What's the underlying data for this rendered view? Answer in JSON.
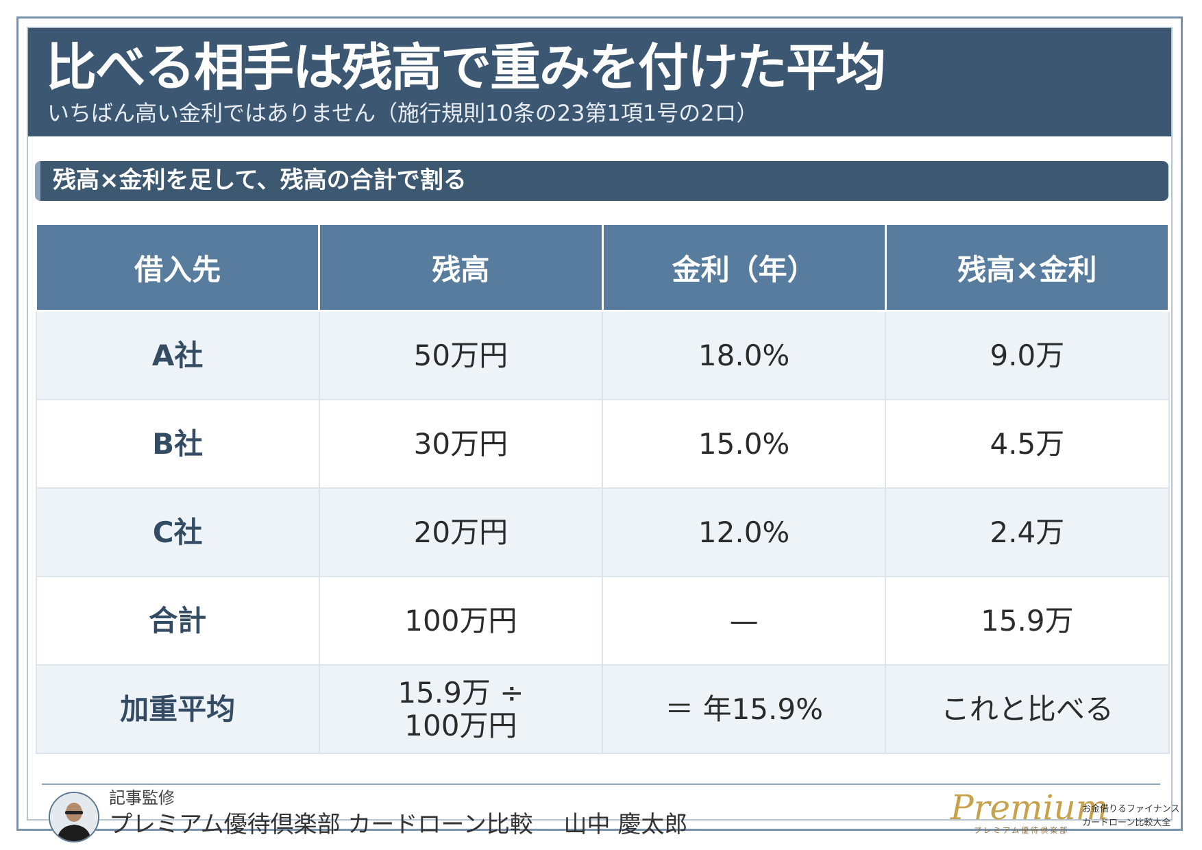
{
  "header": {
    "title": "比べる相手は残高で重みを付けた平均",
    "subtitle": "いちばん高い金利ではありません（施行規則10条の23第1項1号の2ロ）"
  },
  "section": {
    "heading": "残高×金利を足して、残高の合計で割る"
  },
  "table": {
    "columns": [
      "借入先",
      "残高",
      "金利（年）",
      "残高×金利"
    ],
    "rows": [
      {
        "lender": "A社",
        "balance": "50万円",
        "rate": "18.0%",
        "product": "9.0万"
      },
      {
        "lender": "B社",
        "balance": "30万円",
        "rate": "15.0%",
        "product": "4.5万"
      },
      {
        "lender": "C社",
        "balance": "20万円",
        "rate": "12.0%",
        "product": "2.4万"
      },
      {
        "lender": "合計",
        "balance": "100万円",
        "rate": "—",
        "product": "15.9万"
      },
      {
        "lender": "加重平均",
        "balance_line1": "15.9万 ÷",
        "balance_line2": "100万円",
        "rate": "＝ 年15.9%",
        "product": "これと比べる"
      }
    ]
  },
  "footer": {
    "supervisor_label": "記事監修",
    "supervisor_name": "プレミアム優待倶楽部 カードローン比較　 山中 慶太郎",
    "logo_script": "Premium",
    "logo_small": "プレミアム優待倶楽部",
    "logo_tag_line1": "お金借りるファイナンス",
    "logo_tag_line2": "カードローン比較大全"
  },
  "colors": {
    "header_bg": "#3c5771",
    "table_header_bg": "#577c9e",
    "row_alt_bg": "#eef3f8",
    "logo_gold": "#c7a24a"
  },
  "icons": {
    "avatar": "supervisor-avatar-photo"
  }
}
